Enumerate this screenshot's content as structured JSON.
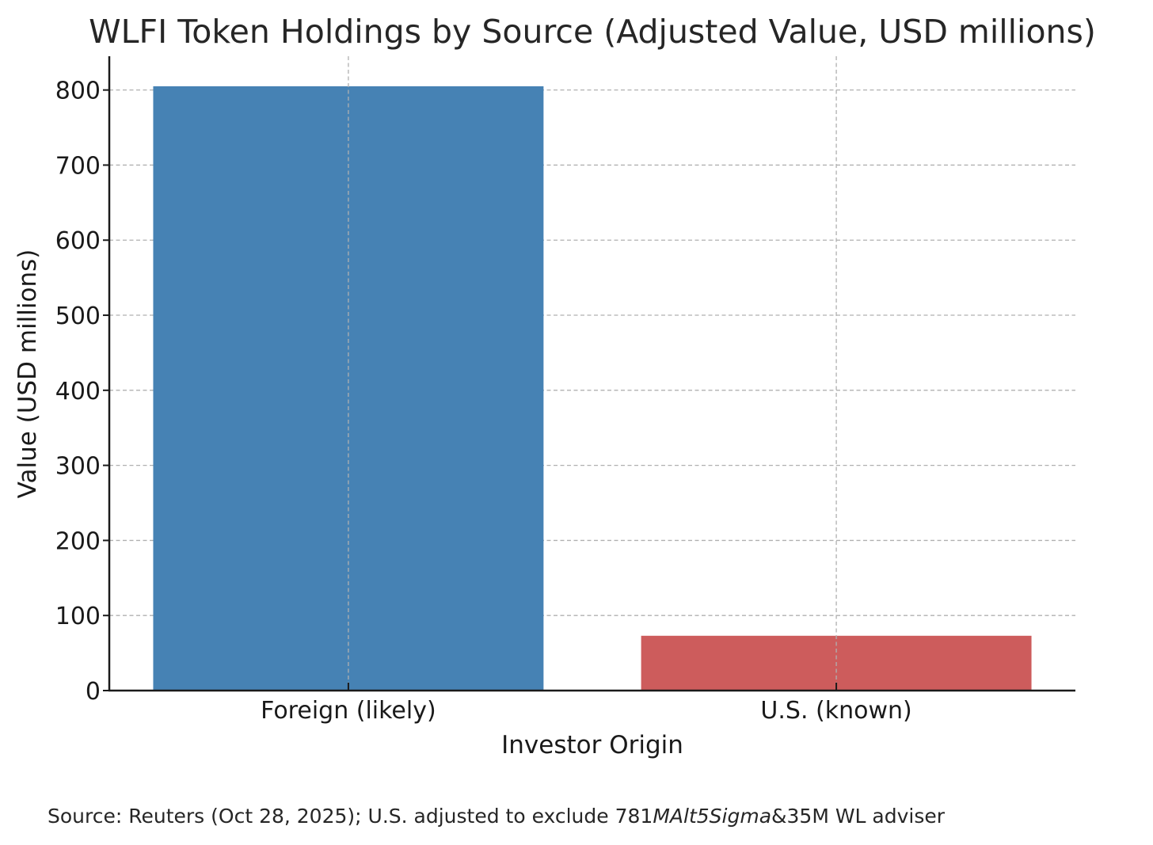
{
  "chart_data": {
    "type": "bar",
    "title": "WLFI Token Holdings by Source (Adjusted Value, USD millions)",
    "xlabel": "Investor Origin",
    "ylabel": "Value (USD millions)",
    "categories": [
      "Foreign (likely)",
      "U.S. (known)"
    ],
    "values": [
      805,
      73
    ],
    "colors": [
      "#4682b4",
      "#cd5c5c"
    ],
    "ylim": [
      0,
      845
    ],
    "yticks": [
      0,
      100,
      200,
      300,
      400,
      500,
      600,
      700,
      800
    ],
    "ytick_labels": [
      "0",
      "100",
      "200",
      "300",
      "400",
      "500",
      "600",
      "700",
      "800"
    ],
    "grid": true,
    "grid_color": "#b0b0b0",
    "axis_color": "#1a1a1a"
  },
  "footnote": {
    "prefix": "Source: Reuters (Oct 28, 2025); U.S. adjusted to exclude 781",
    "italic": "MAlt5Sigma",
    "suffix": "&35M WL adviser"
  }
}
